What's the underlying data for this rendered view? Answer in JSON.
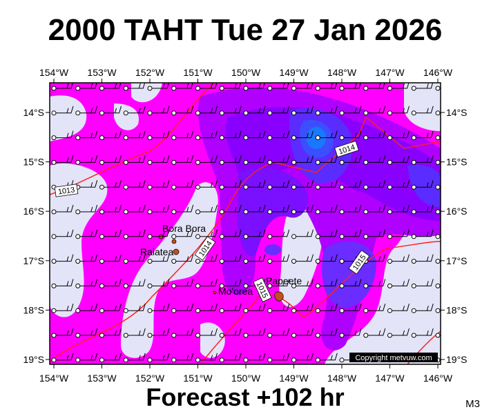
{
  "header": {
    "title": "2000 TAHT Tue 27 Jan 2026"
  },
  "map": {
    "longitude_labels": [
      "154°W",
      "153°W",
      "152°W",
      "151°W",
      "150°W",
      "149°W",
      "148°W",
      "147°W",
      "146°W"
    ],
    "latitude_labels": [
      "14°S",
      "15°S",
      "16°S",
      "17°S",
      "18°S",
      "19°S"
    ],
    "places": [
      "Bora Bora",
      "Raiatea",
      "Mo'orea",
      "Papeete"
    ],
    "isobar_labels": [
      1013,
      1014,
      1014,
      1015,
      1015
    ],
    "copyright": "Copyright metvuw.com"
  },
  "footer": {
    "caption": "Forecast +102 hr",
    "code": "M3"
  }
}
